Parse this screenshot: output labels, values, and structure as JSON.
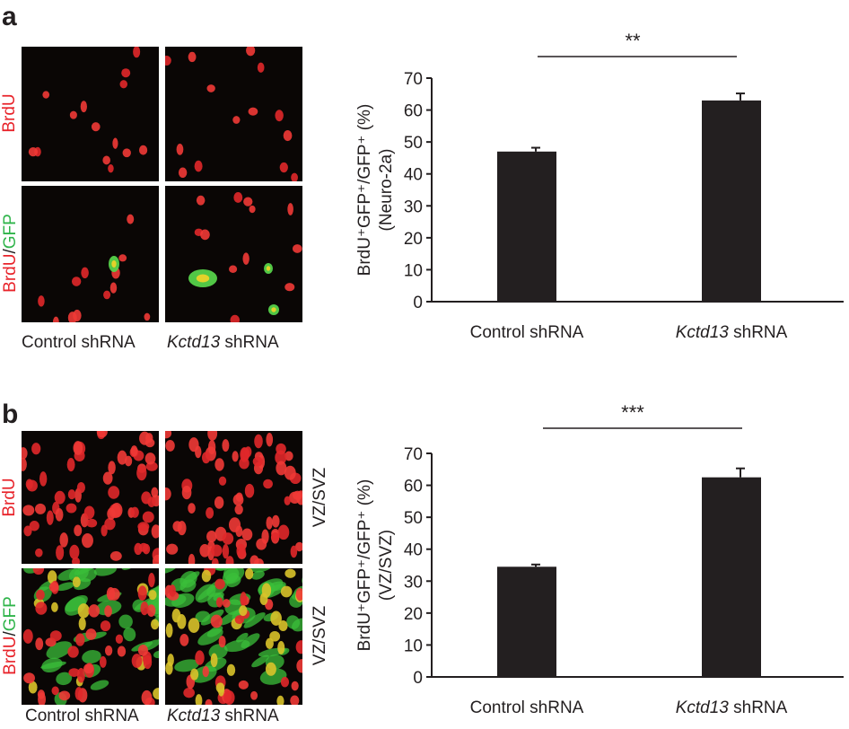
{
  "panels": [
    {
      "letter": "a",
      "image_row_labels": [
        {
          "parts": [
            {
              "text": "BrdU",
              "color": "#e8232a"
            }
          ]
        },
        {
          "parts": [
            {
              "text": "BrdU",
              "color": "#e8232a"
            },
            {
              "text": "/",
              "color": "#231f20"
            },
            {
              "text": "GFP",
              "color": "#2fb44a"
            }
          ]
        }
      ],
      "image_col_labels": [
        {
          "italic": "",
          "text": "Control shRNA"
        },
        {
          "italic": "Kctd13",
          "text": " shRNA"
        }
      ],
      "side_labels": []
    },
    {
      "letter": "b",
      "image_row_labels": [
        {
          "parts": [
            {
              "text": "BrdU",
              "color": "#e8232a"
            }
          ]
        },
        {
          "parts": [
            {
              "text": "BrdU",
              "color": "#e8232a"
            },
            {
              "text": "/",
              "color": "#231f20"
            },
            {
              "text": "GFP",
              "color": "#2fb44a"
            }
          ]
        }
      ],
      "image_col_labels": [
        {
          "italic": "",
          "text": "Control shRNA"
        },
        {
          "italic": "Kctd13",
          "text": " shRNA"
        }
      ],
      "side_labels": [
        "VZ/SVZ",
        "VZ/SVZ"
      ]
    }
  ],
  "chart_data": [
    {
      "type": "bar",
      "title": "",
      "ylabel_line1": "BrdU⁺GFP⁺/GFP⁺ (%)",
      "ylabel_line2": "(Neuro-2a)",
      "categories": [
        {
          "italic": "",
          "text": "Control shRNA"
        },
        {
          "italic": "Kctd13",
          "text": " shRNA"
        }
      ],
      "values": [
        47,
        63
      ],
      "errors": [
        1.2,
        2.2
      ],
      "ylim": [
        0,
        70
      ],
      "yticks": [
        0,
        10,
        20,
        30,
        40,
        50,
        60,
        70
      ],
      "significance": "**",
      "bar_color": "#231f20"
    },
    {
      "type": "bar",
      "title": "",
      "ylabel_line1": "BrdU⁺GFP⁺/GFP⁺ (%)",
      "ylabel_line2": "(VZ/SVZ)",
      "categories": [
        {
          "italic": "",
          "text": "Control shRNA"
        },
        {
          "italic": "Kctd13",
          "text": " shRNA"
        }
      ],
      "values": [
        34.5,
        62.5
      ],
      "errors": [
        0.7,
        2.8
      ],
      "ylim": [
        0,
        70
      ],
      "yticks": [
        0,
        10,
        20,
        30,
        40,
        50,
        60,
        70
      ],
      "significance": "***",
      "bar_color": "#231f20"
    }
  ]
}
